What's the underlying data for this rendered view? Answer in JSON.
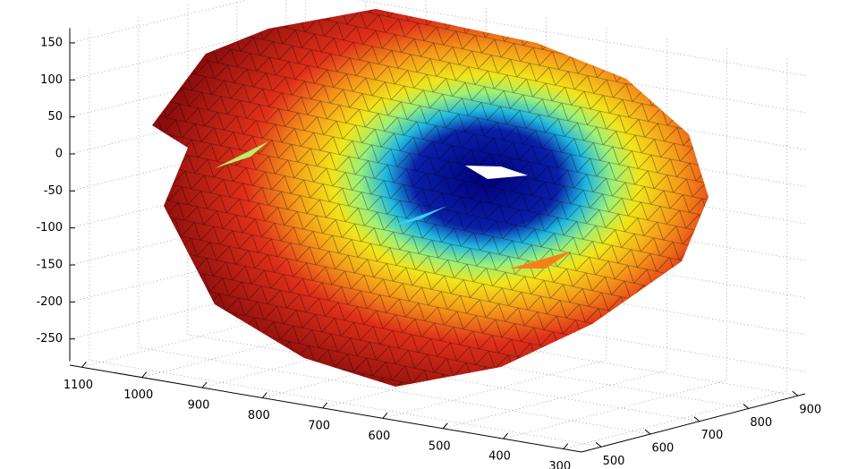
{
  "chart_data": {
    "type": "surface",
    "zlim": [
      -280,
      170
    ],
    "zticks": [
      150,
      100,
      50,
      0,
      -50,
      -100,
      -150,
      -200,
      -250
    ],
    "xlim": [
      1120,
      270
    ],
    "xticks": [
      1100,
      1000,
      900,
      800,
      700,
      600,
      500,
      400,
      300
    ],
    "ylim": [
      460,
      915
    ],
    "yticks": [
      500,
      600,
      700,
      800,
      900
    ],
    "grid": true
  }
}
